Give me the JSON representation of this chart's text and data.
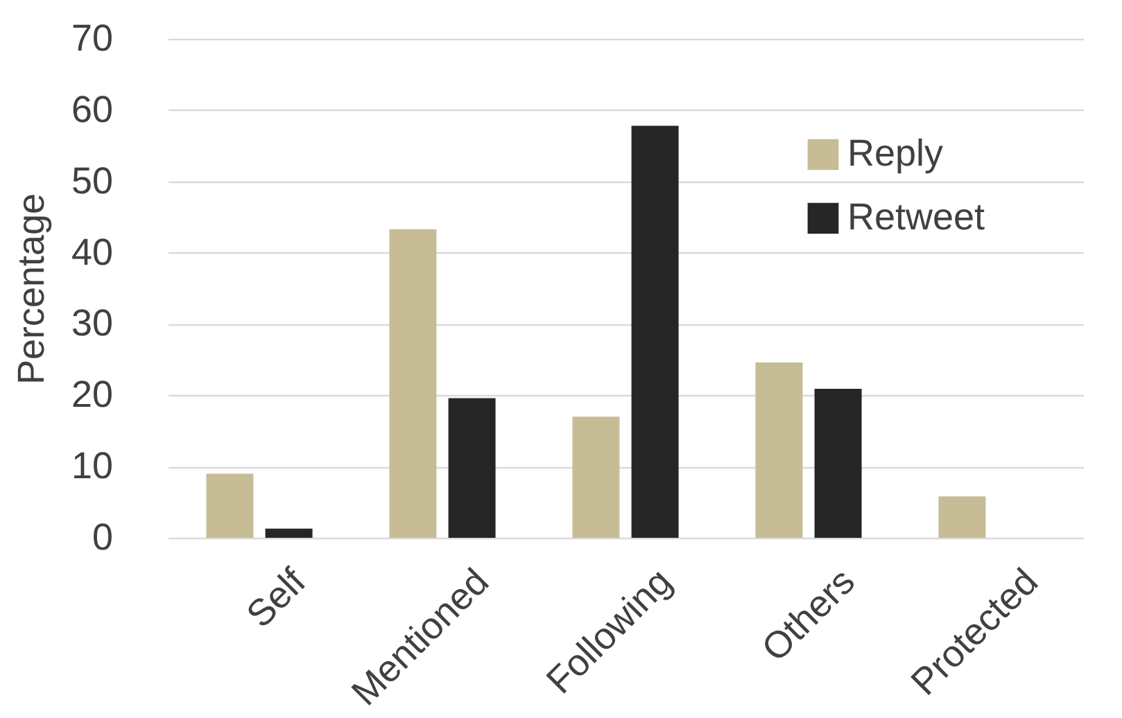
{
  "chart_data": {
    "type": "bar",
    "ylabel": "Percentage",
    "categories": [
      "Self",
      "Mentioned",
      "Following",
      "Others",
      "Protected"
    ],
    "series": [
      {
        "name": "Reply",
        "color": "#c6bd96",
        "values": [
          9,
          43.3,
          17,
          24.6,
          5.8
        ]
      },
      {
        "name": "Retweet",
        "color": "#262626",
        "values": [
          1.3,
          19.6,
          57.8,
          20.9,
          null
        ]
      }
    ],
    "ylim": [
      0,
      70
    ],
    "yticks": [
      0,
      10,
      20,
      30,
      40,
      50,
      60,
      70
    ],
    "grid": "y",
    "legend": "top right"
  }
}
